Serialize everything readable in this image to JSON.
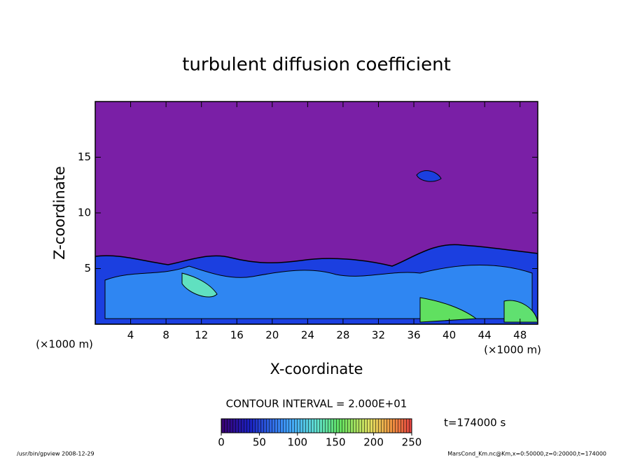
{
  "chart_data": {
    "type": "contour",
    "title": "turbulent diffusion coefficient",
    "x_label": "X-coordinate",
    "y_label": "Z-coordinate",
    "x_unit": "(×1000 m)",
    "y_unit": "(×1000 m)",
    "xlim": [
      0,
      50
    ],
    "xticks": [
      4,
      8,
      12,
      16,
      20,
      24,
      28,
      32,
      36,
      40,
      44,
      48
    ],
    "ylim": [
      0,
      20
    ],
    "yticks": [
      5,
      10,
      15
    ],
    "contour_interval": "CONTOUR INTERVAL = 2.000E+01",
    "time_label": "t=174000 s",
    "colorbar": {
      "lim": [
        0,
        250
      ],
      "ticks": [
        0,
        50,
        100,
        150,
        200,
        250
      ]
    },
    "footer_left": "/usr/bin/gpview   2008-12-29",
    "footer_right": "MarsCond_Km.nc@Km,x=0:50000,z=0:20000,t=174000"
  }
}
